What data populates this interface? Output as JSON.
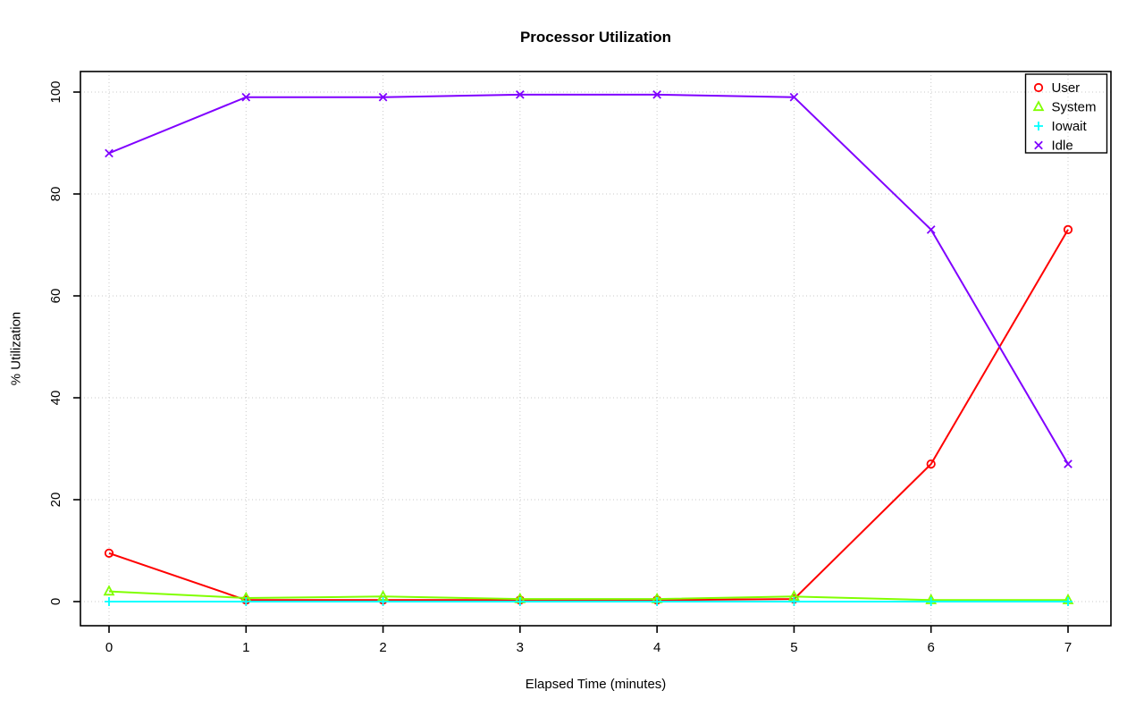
{
  "page": {
    "background": "#ffffff",
    "text_color": "#000000"
  },
  "chart_data": {
    "type": "line",
    "title": "Processor Utilization",
    "xlabel": "Elapsed Time (minutes)",
    "ylabel": "% Utilization",
    "xlim": [
      0,
      7
    ],
    "ylim": [
      0,
      100
    ],
    "x_ticks": [
      "0",
      "1",
      "2",
      "3",
      "4",
      "5",
      "6",
      "7"
    ],
    "y_ticks": [
      "0",
      "20",
      "40",
      "60",
      "80",
      "100"
    ],
    "grid": true,
    "grid_color": "#c9c9c9",
    "legend_position": "topright",
    "x": [
      0,
      1,
      2,
      3,
      4,
      5,
      6,
      7
    ],
    "series": [
      {
        "name": "User",
        "color": "#FF0000",
        "marker": "circle",
        "values": [
          9.5,
          0.3,
          0.3,
          0.3,
          0.3,
          0.5,
          27,
          73
        ]
      },
      {
        "name": "System",
        "color": "#80FF00",
        "marker": "triangle",
        "values": [
          2,
          0.7,
          1,
          0.5,
          0.5,
          1,
          0.3,
          0.3
        ]
      },
      {
        "name": "Iowait",
        "color": "#00FFFF",
        "marker": "plus",
        "values": [
          0,
          0,
          0,
          0,
          0,
          0,
          0,
          0
        ]
      },
      {
        "name": "Idle",
        "color": "#8000FF",
        "marker": "x",
        "values": [
          88,
          99,
          99,
          99.5,
          99.5,
          99,
          73,
          27
        ]
      }
    ]
  }
}
